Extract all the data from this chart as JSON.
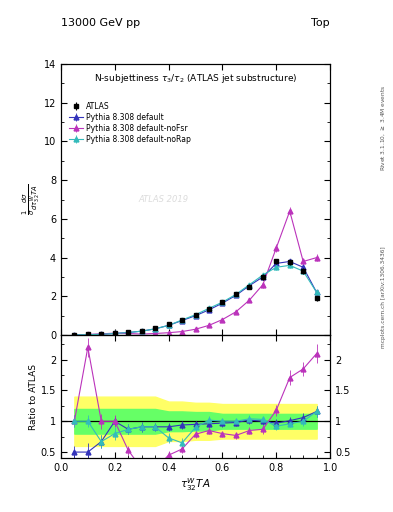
{
  "title_top": "13000 GeV pp",
  "title_right": "Top",
  "plot_title": "N-subjettiness $\\tau_3/\\tau_2$ (ATLAS jet substructure)",
  "ylabel_main": "$\\frac{1}{\\sigma}\\frac{d\\sigma}{d\\tau_{32}^{W}TA}$",
  "ylabel_ratio": "Ratio to ATLAS",
  "xlabel": "$\\tau_{32}^{W}TA$",
  "right_label_top": "Rivet 3.1.10, $\\geq$ 3.4M events",
  "right_label_bottom": "mcplots.cern.ch [arXiv:1306.3436]",
  "watermark": "ATLAS 2019",
  "atlas_x": [
    0.05,
    0.1,
    0.15,
    0.2,
    0.25,
    0.3,
    0.35,
    0.4,
    0.45,
    0.5,
    0.55,
    0.6,
    0.65,
    0.7,
    0.75,
    0.8,
    0.85,
    0.9,
    0.95
  ],
  "atlas_y": [
    0.02,
    0.04,
    0.06,
    0.1,
    0.15,
    0.22,
    0.35,
    0.55,
    0.8,
    1.05,
    1.35,
    1.7,
    2.1,
    2.5,
    3.0,
    3.8,
    3.75,
    3.3,
    1.9
  ],
  "atlas_yerr": [
    0.005,
    0.006,
    0.008,
    0.012,
    0.015,
    0.02,
    0.025,
    0.03,
    0.04,
    0.05,
    0.06,
    0.08,
    0.1,
    0.12,
    0.15,
    0.15,
    0.15,
    0.15,
    0.12
  ],
  "py_default_x": [
    0.05,
    0.1,
    0.15,
    0.2,
    0.25,
    0.3,
    0.35,
    0.4,
    0.45,
    0.5,
    0.55,
    0.6,
    0.65,
    0.7,
    0.75,
    0.8,
    0.85,
    0.9,
    0.95
  ],
  "py_default_y": [
    0.01,
    0.02,
    0.04,
    0.08,
    0.13,
    0.2,
    0.32,
    0.5,
    0.75,
    1.0,
    1.3,
    1.65,
    2.05,
    2.55,
    3.0,
    3.7,
    3.8,
    3.5,
    2.2
  ],
  "py_default_yerr": [
    0.003,
    0.004,
    0.005,
    0.008,
    0.01,
    0.015,
    0.02,
    0.025,
    0.03,
    0.04,
    0.05,
    0.06,
    0.08,
    0.1,
    0.12,
    0.15,
    0.15,
    0.15,
    0.12
  ],
  "py_nofsr_x": [
    0.05,
    0.1,
    0.15,
    0.2,
    0.25,
    0.3,
    0.35,
    0.4,
    0.45,
    0.5,
    0.55,
    0.6,
    0.65,
    0.7,
    0.75,
    0.8,
    0.85,
    0.9,
    0.95
  ],
  "py_nofsr_y": [
    0.01,
    0.03,
    0.06,
    0.1,
    0.08,
    0.05,
    0.08,
    0.12,
    0.18,
    0.3,
    0.5,
    0.8,
    1.2,
    1.8,
    2.6,
    4.5,
    6.4,
    3.8,
    4.0
  ],
  "py_nofsr_yerr": [
    0.003,
    0.005,
    0.007,
    0.01,
    0.01,
    0.01,
    0.012,
    0.015,
    0.02,
    0.025,
    0.035,
    0.05,
    0.07,
    0.1,
    0.15,
    0.2,
    0.2,
    0.2,
    0.2
  ],
  "py_norap_x": [
    0.05,
    0.1,
    0.15,
    0.2,
    0.25,
    0.3,
    0.35,
    0.4,
    0.45,
    0.5,
    0.55,
    0.6,
    0.65,
    0.7,
    0.75,
    0.8,
    0.85,
    0.9,
    0.95
  ],
  "py_norap_y": [
    0.01,
    0.02,
    0.04,
    0.08,
    0.13,
    0.2,
    0.32,
    0.5,
    0.78,
    1.05,
    1.38,
    1.7,
    2.1,
    2.6,
    3.1,
    3.5,
    3.6,
    3.3,
    2.2
  ],
  "py_norap_yerr": [
    0.003,
    0.004,
    0.005,
    0.008,
    0.01,
    0.015,
    0.02,
    0.025,
    0.03,
    0.04,
    0.05,
    0.06,
    0.08,
    0.1,
    0.12,
    0.12,
    0.12,
    0.12,
    0.1
  ],
  "ratio_default_y": [
    0.5,
    0.5,
    0.67,
    1.0,
    0.87,
    0.91,
    0.91,
    0.91,
    0.94,
    0.95,
    0.96,
    0.97,
    0.98,
    1.02,
    1.0,
    0.97,
    1.01,
    1.06,
    1.16
  ],
  "ratio_default_yerr": [
    0.1,
    0.15,
    0.1,
    0.08,
    0.08,
    0.08,
    0.07,
    0.07,
    0.06,
    0.06,
    0.06,
    0.06,
    0.06,
    0.06,
    0.06,
    0.06,
    0.06,
    0.07,
    0.09
  ],
  "ratio_nofsr_y": [
    1.0,
    2.2,
    1.0,
    1.0,
    0.53,
    0.23,
    0.23,
    0.45,
    0.55,
    0.79,
    0.85,
    0.8,
    0.77,
    0.85,
    0.87,
    1.18,
    1.71,
    1.85,
    2.1
  ],
  "ratio_nofsr_yerr": [
    0.1,
    0.15,
    0.12,
    0.1,
    0.07,
    0.05,
    0.05,
    0.06,
    0.06,
    0.06,
    0.06,
    0.05,
    0.05,
    0.06,
    0.07,
    0.09,
    0.12,
    0.12,
    0.15
  ],
  "ratio_norap_y": [
    1.0,
    1.0,
    0.67,
    0.8,
    0.87,
    0.91,
    0.91,
    0.73,
    0.65,
    0.9,
    1.02,
    1.0,
    1.0,
    1.04,
    1.03,
    0.92,
    0.96,
    1.0,
    1.16
  ],
  "ratio_norap_yerr": [
    0.1,
    0.1,
    0.1,
    0.1,
    0.08,
    0.07,
    0.07,
    0.08,
    0.08,
    0.06,
    0.06,
    0.06,
    0.06,
    0.06,
    0.06,
    0.06,
    0.06,
    0.07,
    0.09
  ],
  "band_yellow_low": [
    0.6,
    0.6,
    0.6,
    0.6,
    0.6,
    0.6,
    0.6,
    0.68,
    0.68,
    0.7,
    0.7,
    0.72,
    0.72,
    0.72,
    0.72,
    0.72,
    0.72,
    0.72,
    0.72
  ],
  "band_yellow_high": [
    1.4,
    1.4,
    1.4,
    1.4,
    1.4,
    1.4,
    1.4,
    1.32,
    1.32,
    1.3,
    1.3,
    1.28,
    1.28,
    1.28,
    1.28,
    1.28,
    1.28,
    1.28,
    1.28
  ],
  "band_green_low": [
    0.8,
    0.8,
    0.8,
    0.8,
    0.8,
    0.8,
    0.8,
    0.84,
    0.84,
    0.85,
    0.85,
    0.88,
    0.88,
    0.88,
    0.88,
    0.88,
    0.88,
    0.88,
    0.88
  ],
  "band_green_high": [
    1.2,
    1.2,
    1.2,
    1.2,
    1.2,
    1.2,
    1.2,
    1.16,
    1.16,
    1.15,
    1.15,
    1.12,
    1.12,
    1.12,
    1.12,
    1.12,
    1.12,
    1.12,
    1.12
  ],
  "color_atlas": "#000000",
  "color_default": "#3333bb",
  "color_nofsr": "#bb33bb",
  "color_norap": "#33bbbb",
  "ylim_main": [
    0,
    14
  ],
  "ylim_ratio": [
    0.4,
    2.4
  ],
  "xlim": [
    0.0,
    1.0
  ]
}
